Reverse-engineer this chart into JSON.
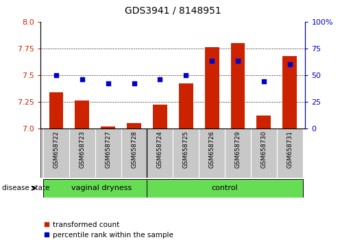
{
  "title": "GDS3941 / 8148951",
  "samples": [
    "GSM658722",
    "GSM658723",
    "GSM658727",
    "GSM658728",
    "GSM658724",
    "GSM658725",
    "GSM658726",
    "GSM658729",
    "GSM658730",
    "GSM658731"
  ],
  "transformed_count": [
    7.34,
    7.26,
    7.02,
    7.05,
    7.22,
    7.42,
    7.76,
    7.8,
    7.12,
    7.68
  ],
  "percentile_rank": [
    50,
    46,
    42,
    42,
    46,
    50,
    63,
    63,
    44,
    60
  ],
  "groups": [
    "vaginal dryness",
    "vaginal dryness",
    "vaginal dryness",
    "vaginal dryness",
    "control",
    "control",
    "control",
    "control",
    "control",
    "control"
  ],
  "ylim_left": [
    7.0,
    8.0
  ],
  "ylim_right": [
    0,
    100
  ],
  "yticks_left": [
    7.0,
    7.25,
    7.5,
    7.75,
    8.0
  ],
  "yticks_right": [
    0,
    25,
    50,
    75,
    100
  ],
  "bar_color": "#CC2200",
  "dot_color": "#0000CC",
  "label_area_color": "#c8c8c8",
  "group_box_color": "#66DD55",
  "vd_count": 4
}
